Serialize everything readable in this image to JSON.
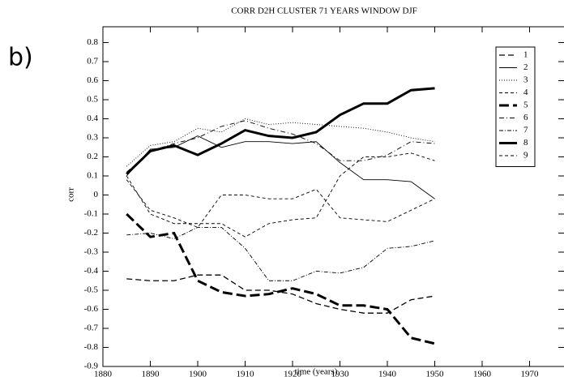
{
  "panel_label": "b)",
  "chart_data": {
    "type": "line",
    "title": "CORR D2H CLUSTER 71 YEARS WINDOW DJF",
    "xlabel": "time (years)",
    "ylabel": "corr",
    "x": [
      1885,
      1890,
      1895,
      1900,
      1905,
      1910,
      1915,
      1920,
      1925,
      1930,
      1935,
      1940,
      1945,
      1950
    ],
    "xlim": [
      1880,
      1980
    ],
    "xticks": [
      1880,
      1890,
      1900,
      1910,
      1920,
      1930,
      1940,
      1950,
      1960,
      1970
    ],
    "ylim": [
      -0.9,
      0.9
    ],
    "yticks": [
      -0.9,
      -0.8,
      -0.7,
      -0.6,
      -0.5,
      -0.4,
      -0.3,
      -0.2,
      -0.1,
      0,
      0.1,
      0.2,
      0.3,
      0.4,
      0.5,
      0.6,
      0.7,
      0.8
    ],
    "legend": "upper right",
    "grid": false,
    "series": [
      {
        "name": "1",
        "color": "#000000",
        "dash": "7,4",
        "width": 1.3,
        "values": [
          -0.44,
          -0.45,
          -0.45,
          -0.42,
          -0.42,
          -0.5,
          -0.5,
          -0.52,
          -0.57,
          -0.6,
          -0.62,
          -0.62,
          -0.55,
          -0.53
        ]
      },
      {
        "name": "2",
        "color": "#000000",
        "dash": "none",
        "width": 0.9,
        "values": [
          0.1,
          0.24,
          0.25,
          0.31,
          0.25,
          0.28,
          0.28,
          0.27,
          0.28,
          0.17,
          0.08,
          0.08,
          0.07,
          -0.02
        ]
      },
      {
        "name": "3",
        "color": "#000000",
        "dash": "1,2",
        "width": 0.9,
        "values": [
          0.15,
          0.26,
          0.28,
          0.35,
          0.33,
          0.4,
          0.37,
          0.38,
          0.37,
          0.36,
          0.35,
          0.33,
          0.3,
          0.28
        ]
      },
      {
        "name": "4",
        "color": "#000000",
        "dash": "4,3",
        "width": 0.9,
        "values": [
          0.08,
          -0.08,
          -0.12,
          -0.17,
          0.0,
          0.0,
          -0.02,
          -0.02,
          0.03,
          -0.12,
          -0.13,
          -0.14,
          -0.08,
          -0.02
        ]
      },
      {
        "name": "5",
        "color": "#000000",
        "dash": "12,5",
        "width": 3,
        "values": [
          -0.1,
          -0.22,
          -0.2,
          -0.45,
          -0.51,
          -0.53,
          -0.52,
          -0.49,
          -0.52,
          -0.58,
          -0.58,
          -0.6,
          -0.75,
          -0.78
        ]
      },
      {
        "name": "6",
        "color": "#000000",
        "dash": "6,3,1,3",
        "width": 0.9,
        "values": [
          0.12,
          0.23,
          0.27,
          0.3,
          0.36,
          0.39,
          0.35,
          0.32,
          0.27,
          0.18,
          0.18,
          0.21,
          0.28,
          0.27
        ]
      },
      {
        "name": "7",
        "color": "#000000",
        "dash": "5,2,1,2",
        "width": 0.9,
        "values": [
          -0.21,
          -0.2,
          -0.23,
          -0.17,
          -0.17,
          -0.28,
          -0.45,
          -0.45,
          -0.4,
          -0.41,
          -0.38,
          -0.28,
          -0.27,
          -0.24
        ]
      },
      {
        "name": "8",
        "color": "#000000",
        "dash": "none",
        "width": 3,
        "values": [
          0.11,
          0.23,
          0.26,
          0.21,
          0.27,
          0.34,
          0.31,
          0.3,
          0.33,
          0.42,
          0.48,
          0.48,
          0.55,
          0.56
        ]
      },
      {
        "name": "9",
        "color": "#000000",
        "dash": "4,3",
        "width": 0.9,
        "values": [
          0.1,
          -0.1,
          -0.15,
          -0.15,
          -0.15,
          -0.22,
          -0.15,
          -0.13,
          -0.12,
          0.1,
          0.2,
          0.2,
          0.22,
          0.18
        ]
      }
    ]
  }
}
